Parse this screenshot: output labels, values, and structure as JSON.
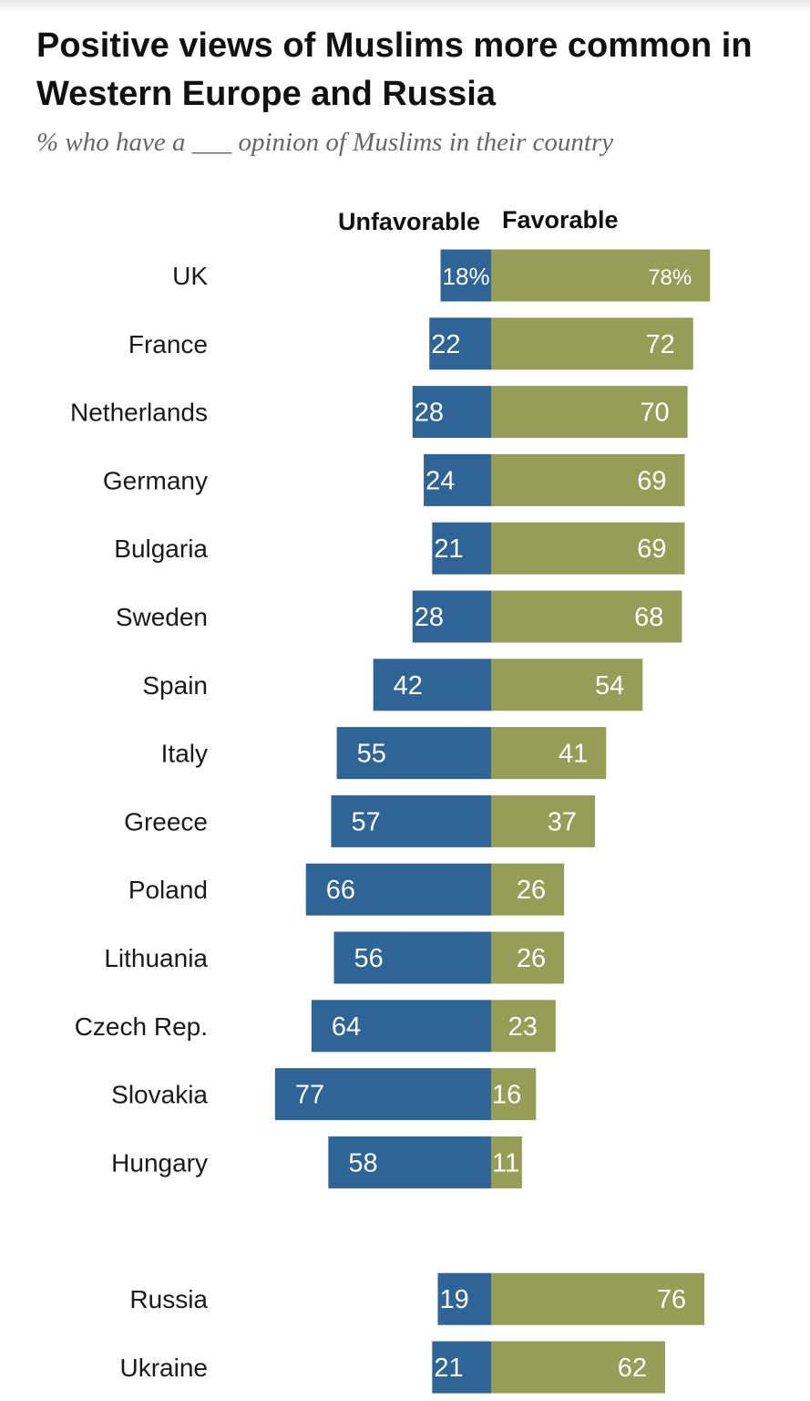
{
  "title": "Positive views of Muslims more common in Western Europe and Russia",
  "subtitle": "% who have a ___ opinion of Muslims in their country",
  "colors": {
    "unfavorable": "#2e6596",
    "favorable": "#959d57",
    "label_text": "#ffffff",
    "text": "#1a1a1a"
  },
  "chart_data": {
    "type": "bar",
    "orientation": "horizontal-diverging",
    "series": [
      {
        "name": "Unfavorable",
        "values": [
          18,
          22,
          28,
          24,
          21,
          28,
          42,
          55,
          57,
          66,
          56,
          64,
          77,
          58,
          19,
          21
        ]
      },
      {
        "name": "Favorable",
        "values": [
          78,
          72,
          70,
          69,
          69,
          68,
          54,
          41,
          37,
          26,
          26,
          23,
          16,
          11,
          76,
          62
        ]
      }
    ],
    "categories": [
      "UK",
      "France",
      "Netherlands",
      "Germany",
      "Bulgaria",
      "Sweden",
      "Spain",
      "Italy",
      "Greece",
      "Poland",
      "Lithuania",
      "Czech Rep.",
      "Slovakia",
      "Hungary",
      "Russia",
      "Ukraine"
    ],
    "groups": [
      [
        "UK",
        "France",
        "Netherlands",
        "Germany",
        "Bulgaria",
        "Sweden",
        "Spain",
        "Italy",
        "Greece",
        "Poland",
        "Lithuania",
        "Czech Rep.",
        "Slovakia",
        "Hungary"
      ],
      [
        "Russia",
        "Ukraine"
      ]
    ],
    "first_value_suffix": "%"
  }
}
